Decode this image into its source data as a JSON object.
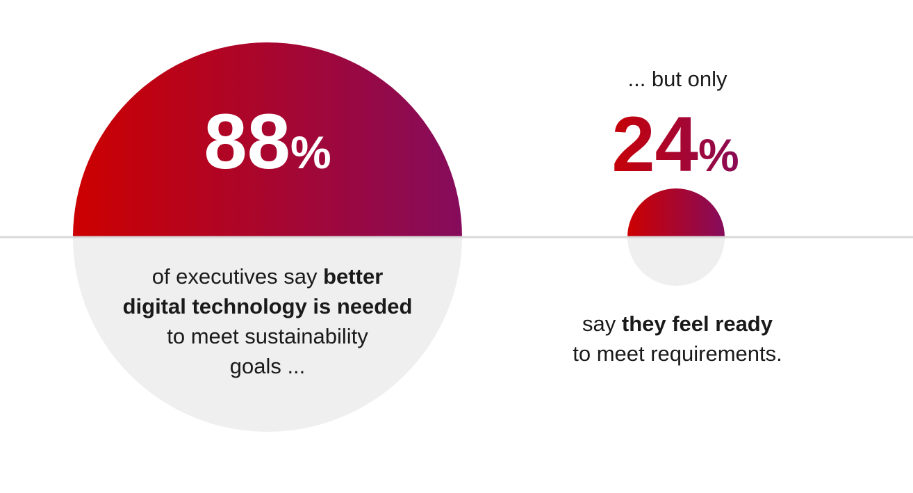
{
  "chart_data": {
    "type": "pie",
    "stats": [
      {
        "value": 88,
        "value_text": "88",
        "unit": "%",
        "intro": "",
        "desc_lines": [
          [
            {
              "text": "of executives say ",
              "bold": false
            },
            {
              "text": "better",
              "bold": true
            }
          ],
          [
            {
              "text": "digital technology is needed",
              "bold": true
            }
          ],
          [
            {
              "text": "to meet sustainability",
              "bold": false
            }
          ],
          [
            {
              "text": "goals ...",
              "bold": false
            }
          ]
        ]
      },
      {
        "value": 24,
        "value_text": "24",
        "unit": "%",
        "intro": "... but only",
        "desc_lines": [
          [
            {
              "text": "say ",
              "bold": false
            },
            {
              "text": "they feel ready",
              "bold": true
            }
          ],
          [
            {
              "text": "to meet requirements.",
              "bold": false
            }
          ]
        ]
      }
    ]
  },
  "colors": {
    "gradient_start": "#cc0000",
    "gradient_end": "#850c5c",
    "lower_half": "#efefef",
    "baseline": "#d9d9d9",
    "text": "#1a1a1a"
  }
}
